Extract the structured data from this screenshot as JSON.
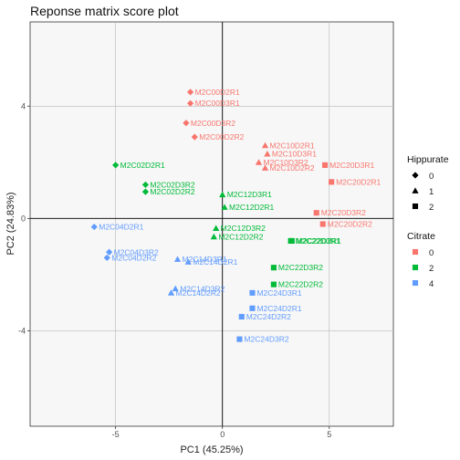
{
  "chart_data": {
    "type": "scatter",
    "title": "Reponse matrix score plot",
    "xlabel": "PC1 (45.25%)",
    "ylabel": "PC2 (24.83%)",
    "xlim": [
      -9.0,
      8.0
    ],
    "ylim": [
      -7.4,
      7.0
    ],
    "x_ticks": [
      -5,
      0,
      5
    ],
    "y_ticks": [
      -4,
      0,
      4
    ],
    "grid": true,
    "zero_lines": true,
    "legend_position": "right",
    "legends": [
      {
        "title": "Hippurate",
        "key": "hippurate",
        "entries": [
          {
            "label": "0",
            "shape": "diamond"
          },
          {
            "label": "1",
            "shape": "triangle"
          },
          {
            "label": "2",
            "shape": "square"
          }
        ]
      },
      {
        "title": "Citrate",
        "key": "citrate",
        "entries": [
          {
            "label": "0",
            "color": "#F8766D"
          },
          {
            "label": "2",
            "color": "#00BA38"
          },
          {
            "label": "4",
            "color": "#619CFF"
          }
        ]
      }
    ],
    "points": [
      {
        "label": "M2C00D2R1",
        "x": -1.5,
        "y": 4.5,
        "hippurate": "0",
        "citrate": "0"
      },
      {
        "label": "M2C00D3R1",
        "x": -1.5,
        "y": 4.1,
        "hippurate": "0",
        "citrate": "0"
      },
      {
        "label": "M2C00D3R2",
        "x": -1.7,
        "y": 3.4,
        "hippurate": "0",
        "citrate": "0"
      },
      {
        "label": "M2C00D2R2",
        "x": -1.3,
        "y": 2.9,
        "hippurate": "0",
        "citrate": "0"
      },
      {
        "label": "M2C10D2R1",
        "x": 2.0,
        "y": 2.6,
        "hippurate": "1",
        "citrate": "0"
      },
      {
        "label": "M2C10D3R1",
        "x": 2.1,
        "y": 2.3,
        "hippurate": "1",
        "citrate": "0"
      },
      {
        "label": "M2C10D3R2",
        "x": 1.7,
        "y": 2.0,
        "hippurate": "1",
        "citrate": "0"
      },
      {
        "label": "M2C10D2R2",
        "x": 2.0,
        "y": 1.8,
        "hippurate": "1",
        "citrate": "0"
      },
      {
        "label": "M2C20D3R1",
        "x": 4.8,
        "y": 1.9,
        "hippurate": "2",
        "citrate": "0"
      },
      {
        "label": "M2C20D2R1",
        "x": 5.1,
        "y": 1.3,
        "hippurate": "2",
        "citrate": "0"
      },
      {
        "label": "M2C20D3R2",
        "x": 4.4,
        "y": 0.2,
        "hippurate": "2",
        "citrate": "0"
      },
      {
        "label": "M2C20D2R2",
        "x": 4.7,
        "y": -0.2,
        "hippurate": "2",
        "citrate": "0"
      },
      {
        "label": "M2C02D2R1",
        "x": -5.0,
        "y": 1.9,
        "hippurate": "0",
        "citrate": "2"
      },
      {
        "label": "M2C02D3R2",
        "x": -3.6,
        "y": 1.2,
        "hippurate": "0",
        "citrate": "2"
      },
      {
        "label": "M2C02D2R2",
        "x": -3.6,
        "y": 0.95,
        "hippurate": "0",
        "citrate": "2"
      },
      {
        "label": "M2C12D3R1",
        "x": 0.0,
        "y": 0.85,
        "hippurate": "1",
        "citrate": "2"
      },
      {
        "label": "M2C12D2R1",
        "x": 0.1,
        "y": 0.4,
        "hippurate": "1",
        "citrate": "2"
      },
      {
        "label": "M2C12D3R2",
        "x": -0.3,
        "y": -0.35,
        "hippurate": "1",
        "citrate": "2"
      },
      {
        "label": "M2C12D2R2",
        "x": -0.4,
        "y": -0.65,
        "hippurate": "1",
        "citrate": "2"
      },
      {
        "label": "M2C22D2R1",
        "x": 3.25,
        "y": -0.8,
        "hippurate": "2",
        "citrate": "2"
      },
      {
        "label": "M2C22D3R1",
        "x": 3.2,
        "y": -0.8,
        "hippurate": "2",
        "citrate": "2"
      },
      {
        "label": "M2C22D3R2",
        "x": 2.4,
        "y": -1.75,
        "hippurate": "2",
        "citrate": "2"
      },
      {
        "label": "M2C22D2R2",
        "x": 2.4,
        "y": -2.35,
        "hippurate": "2",
        "citrate": "2"
      },
      {
        "label": "M2C04D2R1",
        "x": -6.0,
        "y": -0.3,
        "hippurate": "0",
        "citrate": "4"
      },
      {
        "label": "M2C04D3R2",
        "x": -5.3,
        "y": -1.2,
        "hippurate": "0",
        "citrate": "4"
      },
      {
        "label": "M2C04D2R2",
        "x": -5.4,
        "y": -1.4,
        "hippurate": "0",
        "citrate": "4"
      },
      {
        "label": "M2C14D3R1",
        "x": -2.1,
        "y": -1.45,
        "hippurate": "1",
        "citrate": "4"
      },
      {
        "label": "M2C14D2R1",
        "x": -1.6,
        "y": -1.55,
        "hippurate": "1",
        "citrate": "4"
      },
      {
        "label": "M2C14D3R2",
        "x": -2.2,
        "y": -2.5,
        "hippurate": "1",
        "citrate": "4"
      },
      {
        "label": "M2C14D2R2",
        "x": -2.4,
        "y": -2.65,
        "hippurate": "1",
        "citrate": "4"
      },
      {
        "label": "M2C24D3R1",
        "x": 1.4,
        "y": -2.65,
        "hippurate": "2",
        "citrate": "4"
      },
      {
        "label": "M2C24D2R1",
        "x": 1.4,
        "y": -3.2,
        "hippurate": "2",
        "citrate": "4"
      },
      {
        "label": "M2C24D2R2",
        "x": 0.9,
        "y": -3.5,
        "hippurate": "2",
        "citrate": "4"
      },
      {
        "label": "M2C24D3R2",
        "x": 0.8,
        "y": -4.3,
        "hippurate": "2",
        "citrate": "4"
      }
    ]
  }
}
